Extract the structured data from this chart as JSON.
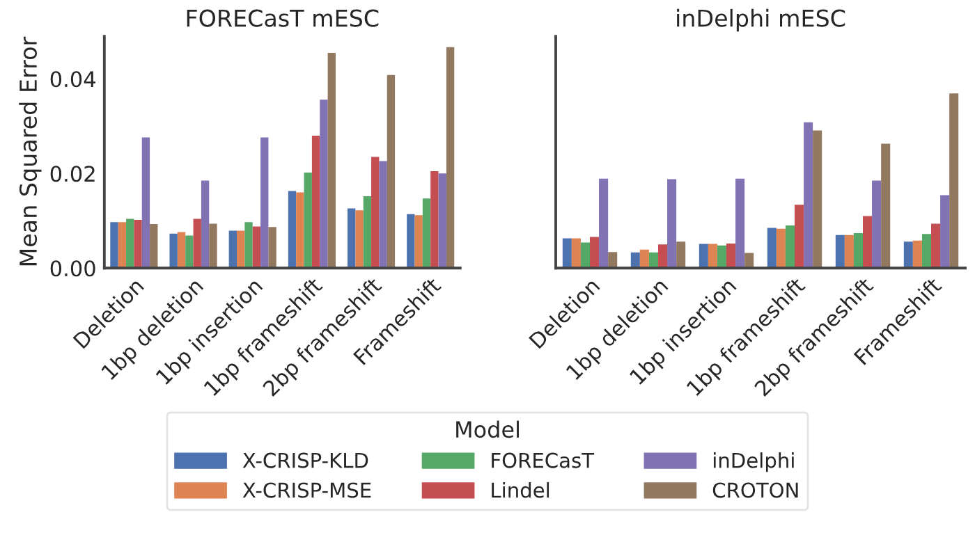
{
  "chart_data": [
    {
      "type": "bar",
      "title": "FORECasT mESC",
      "ylabel": "Mean Squared Error",
      "legend": "bottom",
      "legend_title": "Model",
      "categories": [
        "Deletion",
        "1bp deletion",
        "1bp insertion",
        "1bp frameshift",
        "2bp frameshift",
        "Frameshift"
      ],
      "ylim": [
        0,
        0.049
      ],
      "yticks": [
        {
          "value": 0,
          "label": "0.00"
        },
        {
          "value": 0.02,
          "label": "0.02"
        },
        {
          "value": 0.04,
          "label": "0.04"
        }
      ],
      "grid": false,
      "series": [
        {
          "name": "X-CRISP-KLD",
          "color": "#4c72b0",
          "values": [
            0.0097,
            0.0073,
            0.0079,
            0.0163,
            0.0126,
            0.0114
          ]
        },
        {
          "name": "X-CRISP-MSE",
          "color": "#dd8452",
          "values": [
            0.0097,
            0.0076,
            0.0079,
            0.016,
            0.0122,
            0.0112
          ]
        },
        {
          "name": "FORECasT",
          "color": "#55a868",
          "values": [
            0.0104,
            0.0069,
            0.0097,
            0.0202,
            0.0152,
            0.0147
          ]
        },
        {
          "name": "Lindel",
          "color": "#c44e52",
          "values": [
            0.0102,
            0.0104,
            0.0088,
            0.028,
            0.0235,
            0.0205
          ]
        },
        {
          "name": "inDelphi",
          "color": "#8172b3",
          "values": [
            0.0276,
            0.0185,
            0.0276,
            0.0356,
            0.0226,
            0.02
          ]
        },
        {
          "name": "CROTON",
          "color": "#937860",
          "values": [
            0.0093,
            0.0094,
            0.0087,
            0.0455,
            0.0408,
            0.0467
          ]
        }
      ]
    },
    {
      "type": "bar",
      "title": "inDelphi mESC",
      "tick_labels": "x",
      "categories": [
        "Deletion",
        "1bp deletion",
        "1bp insertion",
        "1bp frameshift",
        "2bp frameshift",
        "Frameshift"
      ],
      "ylim": [
        0,
        0.049
      ],
      "grid": false,
      "series": [
        {
          "color": "#4c72b0",
          "values": [
            0.0063,
            0.0033,
            0.0051,
            0.0085,
            0.007,
            0.0056
          ]
        },
        {
          "color": "#dd8452",
          "values": [
            0.0063,
            0.0039,
            0.0051,
            0.0083,
            0.007,
            0.0058
          ]
        },
        {
          "color": "#55a868",
          "values": [
            0.0054,
            0.0033,
            0.0048,
            0.009,
            0.0074,
            0.0072
          ]
        },
        {
          "color": "#c44e52",
          "values": [
            0.0066,
            0.005,
            0.0052,
            0.0134,
            0.011,
            0.0094
          ]
        },
        {
          "color": "#8172b3",
          "values": [
            0.0189,
            0.0188,
            0.0189,
            0.0308,
            0.0185,
            0.0154
          ]
        },
        {
          "color": "#937860",
          "values": [
            0.0034,
            0.0056,
            0.0032,
            0.0291,
            0.0263,
            0.0369
          ]
        }
      ]
    }
  ]
}
